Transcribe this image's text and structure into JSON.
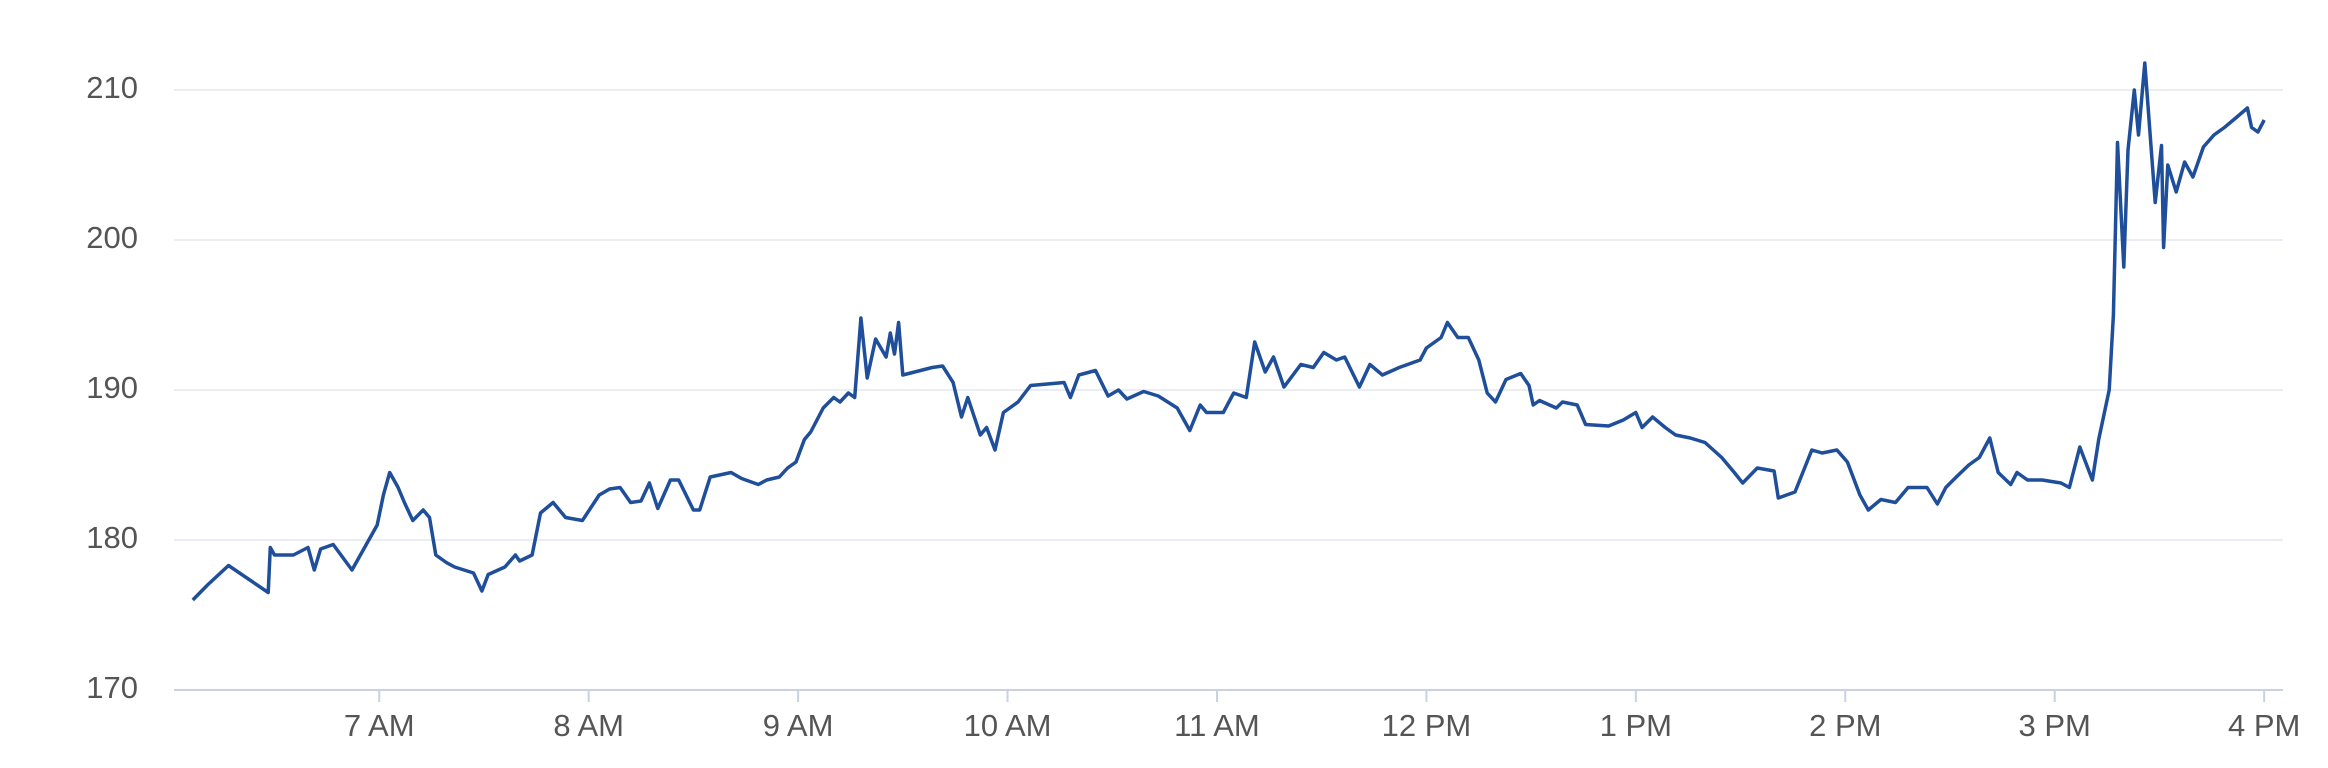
{
  "chart_data": {
    "type": "line",
    "x": [
      6.11,
      6.18,
      6.28,
      6.47,
      6.48,
      6.5,
      6.59,
      6.66,
      6.69,
      6.72,
      6.78,
      6.87,
      6.99,
      7.02,
      7.05,
      7.09,
      7.12,
      7.16,
      7.21,
      7.24,
      7.27,
      7.32,
      7.36,
      7.45,
      7.47,
      7.49,
      7.52,
      7.6,
      7.65,
      7.67,
      7.73,
      7.77,
      7.83,
      7.89,
      7.97,
      8.05,
      8.1,
      8.15,
      8.2,
      8.25,
      8.29,
      8.33,
      8.39,
      8.43,
      8.5,
      8.53,
      8.58,
      8.68,
      8.73,
      8.81,
      8.85,
      8.91,
      8.95,
      8.99,
      9.03,
      9.06,
      9.12,
      9.17,
      9.2,
      9.24,
      9.27,
      9.3,
      9.33,
      9.37,
      9.42,
      9.44,
      9.46,
      9.48,
      9.5,
      9.64,
      9.69,
      9.74,
      9.78,
      9.81,
      9.87,
      9.9,
      9.94,
      9.98,
      10.05,
      10.11,
      10.27,
      10.3,
      10.34,
      10.42,
      10.48,
      10.53,
      10.57,
      10.65,
      10.72,
      10.81,
      10.87,
      10.92,
      10.95,
      11.03,
      11.08,
      11.14,
      11.18,
      11.23,
      11.27,
      11.32,
      11.4,
      11.46,
      11.51,
      11.57,
      11.61,
      11.68,
      11.73,
      11.79,
      11.87,
      11.97,
      12.0,
      12.07,
      12.1,
      12.15,
      12.2,
      12.25,
      12.29,
      12.33,
      12.38,
      12.45,
      12.49,
      12.51,
      12.54,
      12.62,
      12.65,
      12.72,
      12.76,
      12.87,
      12.94,
      13.0,
      13.03,
      13.08,
      13.14,
      13.19,
      13.26,
      13.33,
      13.41,
      13.47,
      13.51,
      13.58,
      13.66,
      13.68,
      13.76,
      13.84,
      13.89,
      13.96,
      14.01,
      14.07,
      14.11,
      14.17,
      14.24,
      14.3,
      14.39,
      14.44,
      14.48,
      14.53,
      14.59,
      14.64,
      14.69,
      14.73,
      14.79,
      14.82,
      14.87,
      14.94,
      15.03,
      15.07,
      15.12,
      15.18,
      15.21,
      15.26,
      15.28,
      15.3,
      15.33,
      15.35,
      15.38,
      15.4,
      15.43,
      15.48,
      15.51,
      15.52,
      15.54,
      15.58,
      15.62,
      15.66,
      15.71,
      15.76,
      15.81,
      15.87,
      15.92,
      15.94,
      15.97,
      16.0
    ],
    "series": [
      {
        "color": "#1f4e9a",
        "values": [
          176.0,
          177.0,
          178.3,
          176.5,
          179.5,
          179.0,
          179.0,
          179.5,
          178.0,
          179.4,
          179.7,
          178.0,
          181.0,
          183.0,
          184.5,
          183.5,
          182.5,
          181.3,
          182.0,
          181.5,
          179.0,
          178.5,
          178.2,
          177.8,
          177.2,
          176.6,
          177.7,
          178.2,
          179.0,
          178.6,
          179.0,
          181.8,
          182.5,
          181.5,
          181.3,
          183.0,
          183.4,
          183.5,
          182.5,
          182.6,
          183.8,
          182.1,
          184.0,
          184.0,
          182.0,
          182.0,
          184.2,
          184.5,
          184.1,
          183.7,
          184.0,
          184.2,
          184.8,
          185.2,
          186.7,
          187.2,
          188.8,
          189.5,
          189.2,
          189.8,
          189.5,
          194.8,
          190.8,
          193.4,
          192.2,
          193.8,
          192.4,
          194.5,
          191.0,
          191.5,
          191.6,
          190.5,
          188.2,
          189.5,
          187.0,
          187.5,
          186.0,
          188.5,
          189.2,
          190.3,
          190.5,
          189.5,
          191.0,
          191.3,
          189.6,
          190.0,
          189.4,
          189.9,
          189.6,
          188.8,
          187.3,
          189.0,
          188.5,
          188.5,
          189.8,
          189.5,
          193.2,
          191.2,
          192.2,
          190.2,
          191.7,
          191.5,
          192.5,
          192.0,
          192.2,
          190.2,
          191.7,
          191.0,
          191.5,
          192.0,
          192.8,
          193.5,
          194.5,
          193.5,
          193.5,
          192.0,
          189.8,
          189.2,
          190.7,
          191.1,
          190.3,
          189.0,
          189.3,
          188.8,
          189.2,
          189.0,
          187.7,
          187.6,
          188.0,
          188.5,
          187.5,
          188.2,
          187.5,
          187.0,
          186.8,
          186.5,
          185.5,
          184.5,
          183.8,
          184.8,
          184.6,
          182.8,
          183.2,
          186.0,
          185.8,
          186.0,
          185.2,
          183.0,
          182.0,
          182.7,
          182.5,
          183.5,
          183.5,
          182.4,
          183.5,
          184.2,
          185.0,
          185.5,
          186.8,
          184.5,
          183.7,
          184.5,
          184.0,
          184.0,
          183.8,
          183.5,
          186.2,
          184.0,
          186.7,
          190.0,
          195.0,
          206.5,
          198.2,
          206.0,
          210.0,
          207.0,
          211.8,
          202.5,
          206.3,
          199.5,
          205.0,
          203.2,
          205.2,
          204.2,
          206.2,
          207.0,
          207.5,
          208.2,
          208.8,
          207.5,
          207.2,
          208.0
        ]
      }
    ],
    "xlim": [
      6.02,
      16.09
    ],
    "xticks": [
      {
        "value": 7,
        "label": "7 AM"
      },
      {
        "value": 8,
        "label": "8 AM"
      },
      {
        "value": 9,
        "label": "9 AM"
      },
      {
        "value": 10,
        "label": "10 AM"
      },
      {
        "value": 11,
        "label": "11 AM"
      },
      {
        "value": 12,
        "label": "12 PM"
      },
      {
        "value": 13,
        "label": "1 PM"
      },
      {
        "value": 14,
        "label": "2 PM"
      },
      {
        "value": 15,
        "label": "3 PM"
      },
      {
        "value": 16,
        "label": "4 PM"
      }
    ],
    "ylim": [
      170,
      210.4
    ],
    "yticks": [
      170,
      180,
      190,
      200,
      210
    ],
    "grid": true
  }
}
